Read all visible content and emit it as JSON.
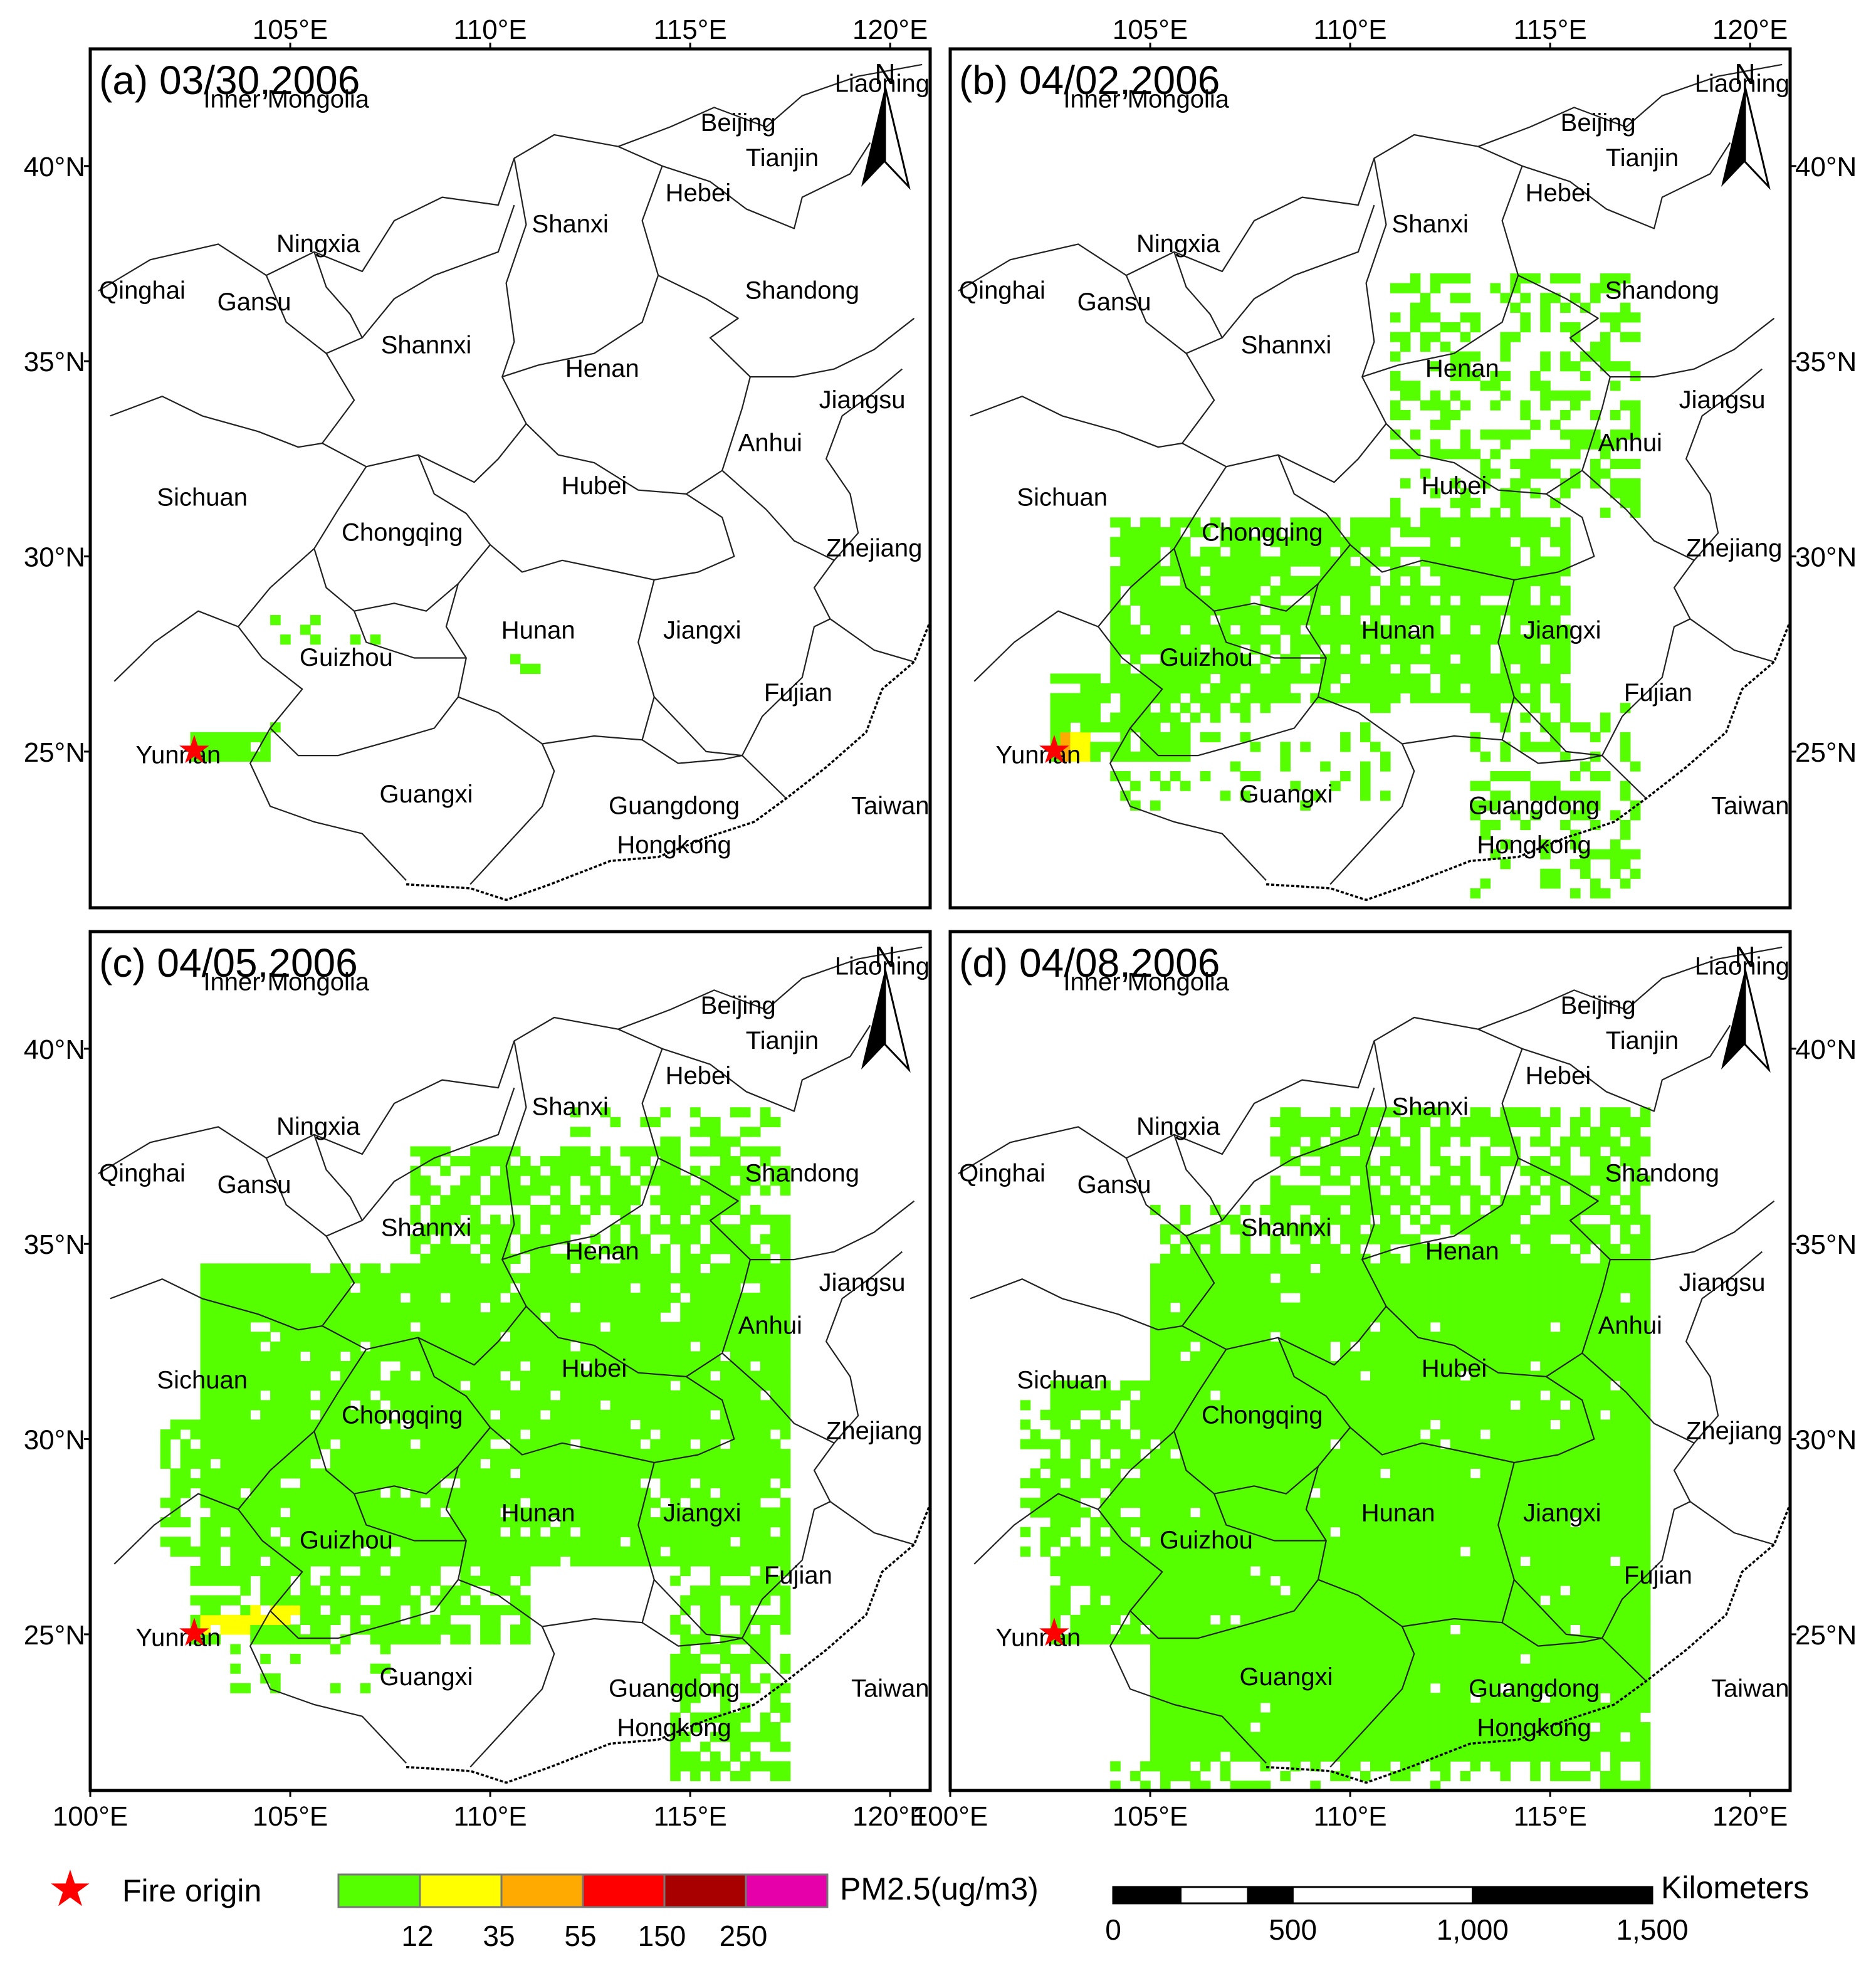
{
  "panels": [
    {
      "label": "(a) 03/30,2006",
      "spread": 0
    },
    {
      "label": "(b) 04/02,2006",
      "spread": 1
    },
    {
      "label": "(c) 04/05,2006",
      "spread": 2
    },
    {
      "label": "(d) 04/08,2006",
      "spread": 3
    }
  ],
  "axes": {
    "lon_ticks": [
      "100°E",
      "105°E",
      "110°E",
      "115°E",
      "120°E"
    ],
    "lat_ticks": [
      "40°N",
      "35°N",
      "30°N",
      "25°N"
    ],
    "extent": {
      "lon_min": 100,
      "lon_max": 121,
      "lat_min": 21,
      "lat_max": 43
    }
  },
  "provinces": [
    {
      "name": "Inner Mongolia",
      "lon": 104.9,
      "lat": 41.5
    },
    {
      "name": "Liaoning",
      "lon": 119.8,
      "lat": 41.9
    },
    {
      "name": "Beijing",
      "lon": 116.2,
      "lat": 40.9
    },
    {
      "name": "Tianjin",
      "lon": 117.3,
      "lat": 40.0
    },
    {
      "name": "Hebei",
      "lon": 115.2,
      "lat": 39.1
    },
    {
      "name": "Shanxi",
      "lon": 112.0,
      "lat": 38.3
    },
    {
      "name": "Ningxia",
      "lon": 105.7,
      "lat": 37.8
    },
    {
      "name": "Qinghai",
      "lon": 101.3,
      "lat": 36.6
    },
    {
      "name": "Gansu",
      "lon": 104.1,
      "lat": 36.3
    },
    {
      "name": "Shandong",
      "lon": 117.8,
      "lat": 36.6
    },
    {
      "name": "Shannxi",
      "lon": 108.4,
      "lat": 35.2
    },
    {
      "name": "Henan",
      "lon": 112.8,
      "lat": 34.6
    },
    {
      "name": "Jiangsu",
      "lon": 119.3,
      "lat": 33.8
    },
    {
      "name": "Anhui",
      "lon": 117.0,
      "lat": 32.7
    },
    {
      "name": "Hubei",
      "lon": 112.6,
      "lat": 31.6
    },
    {
      "name": "Sichuan",
      "lon": 102.8,
      "lat": 31.3
    },
    {
      "name": "Chongqing",
      "lon": 107.8,
      "lat": 30.4
    },
    {
      "name": "Zhejiang",
      "lon": 119.6,
      "lat": 30.0
    },
    {
      "name": "Hunan",
      "lon": 111.2,
      "lat": 27.9
    },
    {
      "name": "Jiangxi",
      "lon": 115.3,
      "lat": 27.9
    },
    {
      "name": "Guizhou",
      "lon": 106.4,
      "lat": 27.2
    },
    {
      "name": "Fujian",
      "lon": 117.7,
      "lat": 26.3
    },
    {
      "name": "Yunnan",
      "lon": 102.2,
      "lat": 24.7
    },
    {
      "name": "Guangxi",
      "lon": 108.4,
      "lat": 23.7
    },
    {
      "name": "Guangdong",
      "lon": 114.6,
      "lat": 23.4
    },
    {
      "name": "Taiwan",
      "lon": 120.0,
      "lat": 23.4
    },
    {
      "name": "Hongkong",
      "lon": 114.6,
      "lat": 22.4
    }
  ],
  "fire_origin": {
    "lon": 102.6,
    "lat": 25.0
  },
  "north_arrow_label": "N",
  "legend": {
    "fire_label": "Fire origin",
    "pm_title": "PM2.5(ug/m3)",
    "classes": [
      {
        "color": "#55ff00"
      },
      {
        "color": "#ffff00"
      },
      {
        "color": "#ffaa00"
      },
      {
        "color": "#ff0000"
      },
      {
        "color": "#a80000"
      },
      {
        "color": "#e600a9"
      }
    ],
    "breaks": [
      "12",
      "35",
      "55",
      "150",
      "250"
    ]
  },
  "scale_bar": {
    "title": "Kilometers",
    "labels": [
      "0",
      "500",
      "1,000",
      "1,500"
    ]
  }
}
